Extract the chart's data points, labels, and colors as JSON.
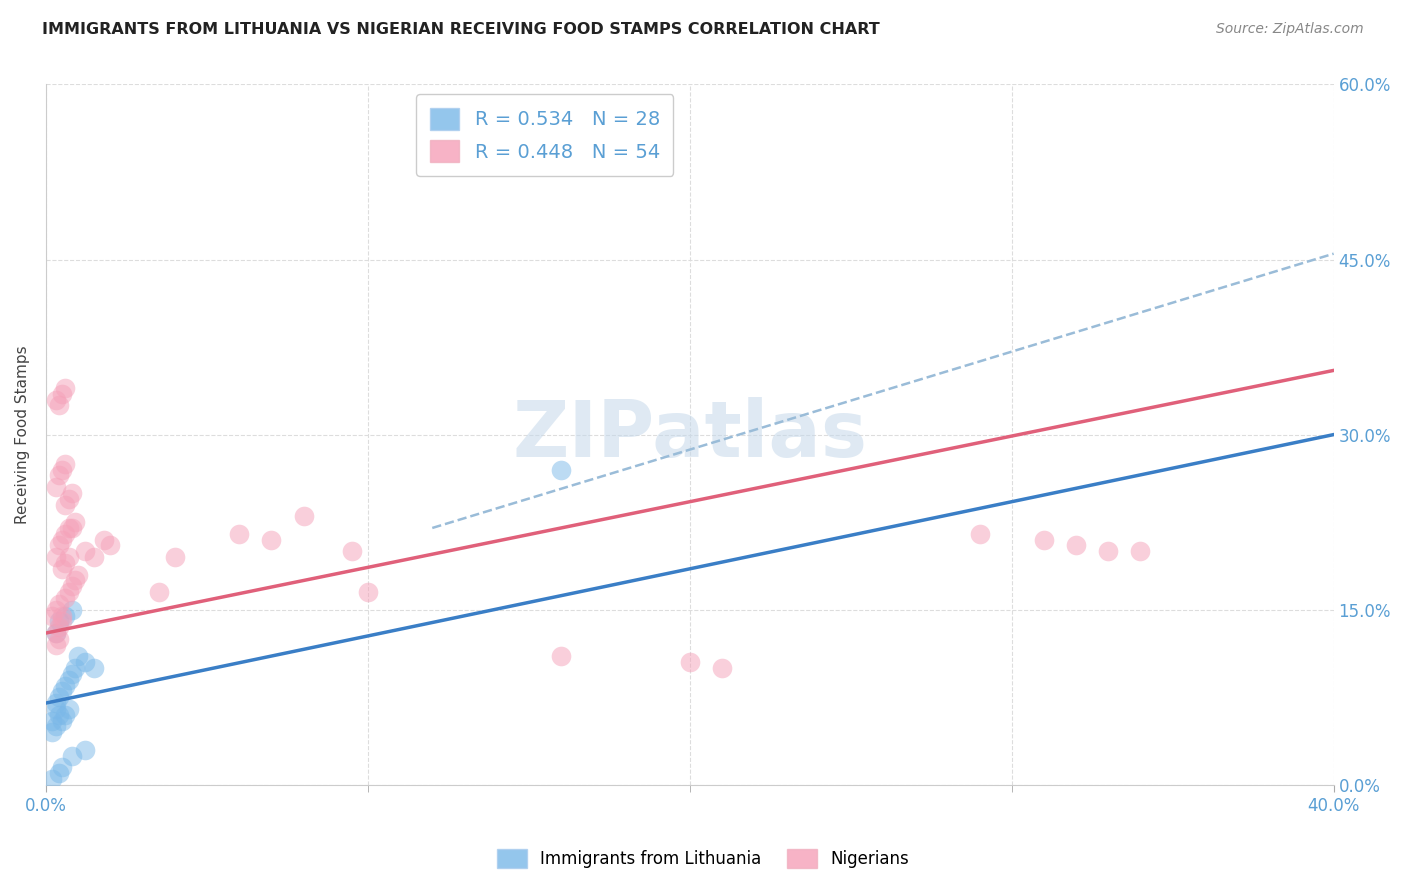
{
  "title": "IMMIGRANTS FROM LITHUANIA VS NIGERIAN RECEIVING FOOD STAMPS CORRELATION CHART",
  "source": "Source: ZipAtlas.com",
  "ylabel": "Receiving Food Stamps",
  "xlim": [
    0.0,
    0.4
  ],
  "ylim": [
    0.0,
    0.6
  ],
  "xticks_major": [
    0.0,
    0.4
  ],
  "xticks_minor": [
    0.1,
    0.2,
    0.3
  ],
  "yticks": [
    0.0,
    0.15,
    0.3,
    0.45,
    0.6
  ],
  "xtick_labels": [
    "0.0%",
    "40.0%"
  ],
  "ytick_labels": [
    "0.0%",
    "15.0%",
    "30.0%",
    "45.0%",
    "60.0%"
  ],
  "background_color": "#ffffff",
  "grid_color": "#dddddd",
  "blue_color": "#7ab8e8",
  "pink_color": "#f5a0b8",
  "blue_line_color": "#3a7ec6",
  "pink_line_color": "#e0607a",
  "dashed_line_color": "#9abcd8",
  "axis_label_color": "#5a9fd4",
  "legend_label_blue": "Immigrants from Lithuania",
  "legend_label_pink": "Nigerians",
  "watermark": "ZIPatlas",
  "blue_line_x0": 0.0,
  "blue_line_y0": 0.07,
  "blue_line_x1": 0.4,
  "blue_line_y1": 0.3,
  "pink_line_x0": 0.0,
  "pink_line_y0": 0.13,
  "pink_line_x1": 0.4,
  "pink_line_y1": 0.355,
  "dash_line_x0": 0.12,
  "dash_line_y0": 0.22,
  "dash_line_x1": 0.4,
  "dash_line_y1": 0.455,
  "blue_scatter_x": [
    0.002,
    0.003,
    0.004,
    0.005,
    0.006,
    0.007,
    0.003,
    0.004,
    0.006,
    0.008,
    0.002,
    0.003,
    0.005,
    0.006,
    0.007,
    0.004,
    0.005,
    0.003,
    0.004,
    0.002,
    0.008,
    0.009,
    0.01,
    0.012,
    0.015,
    0.008,
    0.012,
    0.16
  ],
  "blue_scatter_y": [
    0.055,
    0.065,
    0.06,
    0.08,
    0.085,
    0.09,
    0.13,
    0.14,
    0.145,
    0.15,
    0.045,
    0.05,
    0.055,
    0.06,
    0.065,
    0.01,
    0.015,
    0.07,
    0.075,
    0.005,
    0.095,
    0.1,
    0.11,
    0.105,
    0.1,
    0.025,
    0.03,
    0.27
  ],
  "pink_scatter_x": [
    0.002,
    0.003,
    0.004,
    0.005,
    0.003,
    0.004,
    0.005,
    0.006,
    0.007,
    0.003,
    0.004,
    0.005,
    0.006,
    0.003,
    0.004,
    0.005,
    0.006,
    0.007,
    0.008,
    0.009,
    0.01,
    0.008,
    0.009,
    0.006,
    0.007,
    0.008,
    0.005,
    0.006,
    0.007,
    0.003,
    0.004,
    0.012,
    0.015,
    0.018,
    0.02,
    0.035,
    0.04,
    0.06,
    0.07,
    0.08,
    0.095,
    0.1,
    0.16,
    0.2,
    0.21,
    0.29,
    0.31,
    0.32,
    0.33,
    0.34,
    0.003,
    0.004,
    0.005,
    0.006
  ],
  "pink_scatter_y": [
    0.145,
    0.15,
    0.155,
    0.145,
    0.195,
    0.205,
    0.21,
    0.215,
    0.22,
    0.255,
    0.265,
    0.27,
    0.275,
    0.13,
    0.135,
    0.14,
    0.16,
    0.165,
    0.17,
    0.175,
    0.18,
    0.22,
    0.225,
    0.24,
    0.245,
    0.25,
    0.185,
    0.19,
    0.195,
    0.12,
    0.125,
    0.2,
    0.195,
    0.21,
    0.205,
    0.165,
    0.195,
    0.215,
    0.21,
    0.23,
    0.2,
    0.165,
    0.11,
    0.105,
    0.1,
    0.215,
    0.21,
    0.205,
    0.2,
    0.2,
    0.33,
    0.325,
    0.335,
    0.34
  ]
}
